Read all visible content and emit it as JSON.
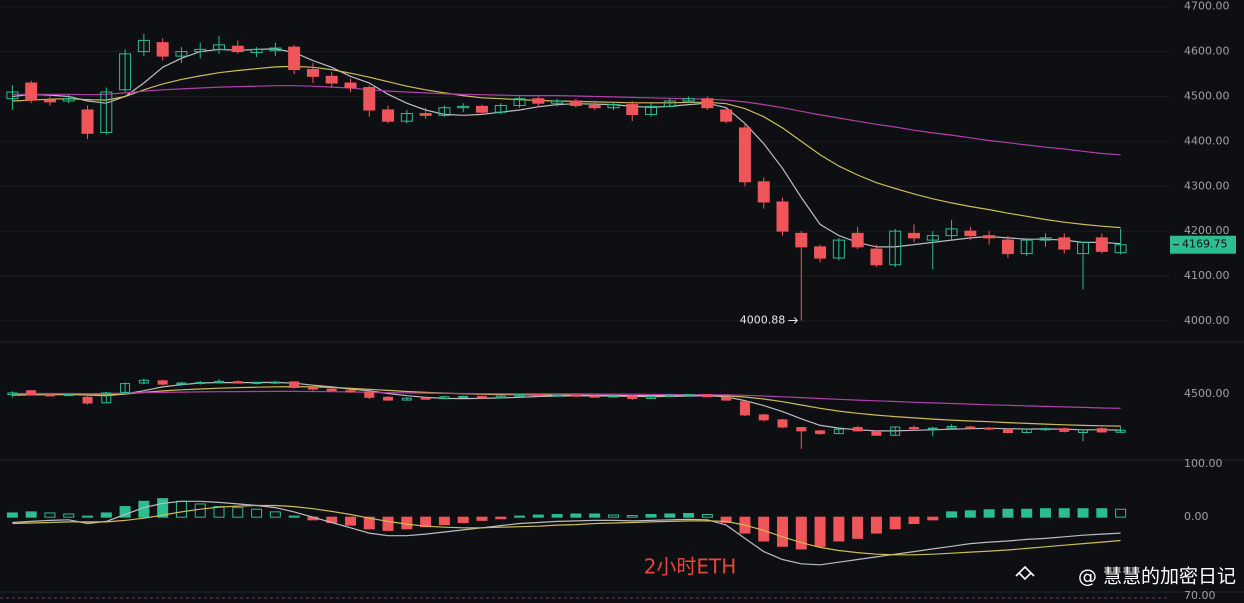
{
  "chart_data": {
    "type": "candlestick",
    "open": [
      4495,
      4530,
      4492,
      4490,
      4470,
      4420,
      4515,
      4600,
      4620,
      4590,
      4600,
      4605,
      4612,
      4598,
      4602,
      4610,
      4560,
      4545,
      4530,
      4520,
      4470,
      4445,
      4462,
      4458,
      4475,
      4478,
      4465,
      4480,
      4495,
      4485,
      4490,
      4480,
      4475,
      4482,
      4460,
      4478,
      4490,
      4495,
      4470,
      4430,
      4310,
      4265,
      4195,
      4165,
      4140,
      4195,
      4160,
      4125,
      4195,
      4180,
      4190,
      4200,
      4190,
      4180,
      4150,
      4180,
      4185,
      4150,
      4185,
      4152
    ],
    "high": [
      4525,
      4535,
      4500,
      4505,
      4480,
      4520,
      4605,
      4640,
      4630,
      4610,
      4620,
      4635,
      4625,
      4610,
      4620,
      4615,
      4575,
      4555,
      4540,
      4525,
      4480,
      4470,
      4475,
      4480,
      4485,
      4482,
      4485,
      4500,
      4500,
      4495,
      4495,
      4490,
      4488,
      4490,
      4485,
      4495,
      4500,
      4500,
      4475,
      4440,
      4320,
      4275,
      4200,
      4170,
      4185,
      4210,
      4170,
      4205,
      4215,
      4200,
      4225,
      4210,
      4200,
      4190,
      4185,
      4195,
      4195,
      4175,
      4195,
      4205
    ],
    "low": [
      4470,
      4485,
      4480,
      4485,
      4405,
      4415,
      4510,
      4590,
      4580,
      4575,
      4585,
      4595,
      4595,
      4588,
      4590,
      4550,
      4530,
      4520,
      4510,
      4455,
      4440,
      4440,
      4450,
      4455,
      4465,
      4460,
      4460,
      4475,
      4478,
      4478,
      4475,
      4470,
      4470,
      4445,
      4455,
      4475,
      4485,
      4470,
      4440,
      4300,
      4250,
      4190,
      4000.88,
      4130,
      4135,
      4160,
      4120,
      4120,
      4175,
      4115,
      4180,
      4180,
      4170,
      4140,
      4145,
      4165,
      4150,
      4070,
      4150,
      4148
    ],
    "close": [
      4510,
      4492,
      4488,
      4495,
      4418,
      4510,
      4595,
      4625,
      4590,
      4600,
      4605,
      4615,
      4600,
      4605,
      4608,
      4560,
      4545,
      4530,
      4520,
      4470,
      4445,
      4462,
      4458,
      4475,
      4478,
      4465,
      4480,
      4495,
      4485,
      4490,
      4480,
      4475,
      4482,
      4460,
      4478,
      4490,
      4495,
      4475,
      4445,
      4310,
      4265,
      4200,
      4165,
      4140,
      4180,
      4165,
      4125,
      4200,
      4185,
      4190,
      4205,
      4190,
      4185,
      4150,
      4180,
      4185,
      4160,
      4175,
      4155,
      4169.75
    ],
    "up_color": "#2dbd8f",
    "down_color": "#f0555a",
    "ylim": [
      3953,
      4715
    ],
    "yticks": [
      {
        "value": 4000,
        "label": "4000.00"
      },
      {
        "value": 4100,
        "label": "4100.00"
      },
      {
        "value": 4200,
        "label": "4200.00"
      },
      {
        "value": 4300,
        "label": "4300.00"
      },
      {
        "value": 4400,
        "label": "4400.00"
      },
      {
        "value": 4500,
        "label": "4500.00"
      },
      {
        "value": 4600,
        "label": "4600.00"
      },
      {
        "value": 4700,
        "label": "4700.00"
      }
    ],
    "moving_averages": [
      {
        "color": "#b9bcc2",
        "values": [
          4500,
          4505,
          4503,
          4500,
          4490,
          4485,
          4500,
          4530,
          4565,
          4585,
          4600,
          4605,
          4603,
          4605,
          4606,
          4598,
          4580,
          4565,
          4545,
          4530,
          4505,
          4485,
          4470,
          4460,
          4458,
          4460,
          4465,
          4470,
          4477,
          4482,
          4484,
          4483,
          4482,
          4478,
          4476,
          4478,
          4482,
          4485,
          4475,
          4440,
          4395,
          4340,
          4275,
          4215,
          4190,
          4175,
          4165,
          4165,
          4170,
          4175,
          4180,
          4185,
          4188,
          4185,
          4182,
          4182,
          4180,
          4175,
          4175,
          4172
        ]
      },
      {
        "color": "#cdbb55",
        "values": [
          4490,
          4492,
          4494,
          4495,
          4493,
          4492,
          4500,
          4515,
          4528,
          4538,
          4546,
          4553,
          4558,
          4562,
          4566,
          4567,
          4565,
          4560,
          4552,
          4543,
          4533,
          4523,
          4515,
          4508,
          4502,
          4497,
          4495,
          4493,
          4491,
          4490,
          4489,
          4488,
          4487,
          4486,
          4486,
          4486,
          4487,
          4487,
          4484,
          4473,
          4455,
          4430,
          4400,
          4370,
          4345,
          4325,
          4308,
          4295,
          4283,
          4272,
          4263,
          4255,
          4248,
          4240,
          4233,
          4226,
          4220,
          4215,
          4211,
          4208
        ]
      },
      {
        "color": "#b03fa6",
        "values": [
          4505,
          4505,
          4505,
          4505,
          4504,
          4505,
          4508,
          4512,
          4515,
          4517,
          4519,
          4521,
          4522,
          4523,
          4524,
          4524,
          4523,
          4521,
          4519,
          4515,
          4512,
          4510,
          4508,
          4506,
          4505,
          4504,
          4503,
          4502,
          4502,
          4502,
          4501,
          4500,
          4499,
          4498,
          4497,
          4496,
          4495,
          4494,
          4492,
          4488,
          4482,
          4475,
          4467,
          4459,
          4452,
          4445,
          4438,
          4432,
          4425,
          4419,
          4414,
          4408,
          4402,
          4397,
          4392,
          4387,
          4383,
          4378,
          4373,
          4370
        ]
      }
    ],
    "sub_panels": [
      {
        "type": "candlestick",
        "ylim": [
          3900,
          4973
        ],
        "yticks": [
          {
            "value": 4500,
            "label": "4500.00"
          }
        ]
      },
      {
        "type": "macd",
        "ylim": [
          -147,
          108
        ],
        "yticks": [
          {
            "value": 100,
            "label": "100.00"
          },
          {
            "value": 0,
            "label": "0.00"
          }
        ],
        "histogram": [
          8,
          10,
          8,
          6,
          2,
          8,
          20,
          30,
          35,
          30,
          25,
          20,
          18,
          15,
          10,
          2,
          -5,
          -10,
          -15,
          -22,
          -25,
          -22,
          -18,
          -14,
          -10,
          -6,
          -3,
          2,
          4,
          5,
          6,
          6,
          4,
          3,
          5,
          6,
          7,
          5,
          -10,
          -30,
          -45,
          -55,
          -60,
          -55,
          -45,
          -40,
          -30,
          -22,
          -12,
          -5,
          10,
          12,
          14,
          15,
          15,
          16,
          16,
          16,
          16,
          15
        ],
        "lines": [
          {
            "color": "#b9bcc2",
            "values": [
              -10,
              -8,
              -6,
              -5,
              -12,
              -8,
              5,
              18,
              26,
              30,
              30,
              28,
              25,
              22,
              18,
              10,
              0,
              -10,
              -20,
              -30,
              -35,
              -35,
              -32,
              -28,
              -24,
              -20,
              -16,
              -12,
              -10,
              -8,
              -7,
              -6,
              -6,
              -7,
              -6,
              -5,
              -4,
              -5,
              -15,
              -40,
              -65,
              -80,
              -88,
              -90,
              -85,
              -80,
              -75,
              -70,
              -65,
              -60,
              -55,
              -50,
              -47,
              -45,
              -42,
              -40,
              -37,
              -34,
              -32,
              -30
            ]
          },
          {
            "color": "#cdbb55",
            "values": [
              -12,
              -11,
              -10,
              -9,
              -9,
              -9,
              -6,
              -2,
              4,
              10,
              15,
              19,
              21,
              22,
              22,
              20,
              16,
              11,
              5,
              -2,
              -8,
              -13,
              -17,
              -19,
              -20,
              -20,
              -19,
              -18,
              -17,
              -15,
              -14,
              -12,
              -11,
              -10,
              -9,
              -8,
              -7,
              -7,
              -8,
              -15,
              -25,
              -37,
              -48,
              -57,
              -63,
              -67,
              -70,
              -71,
              -71,
              -70,
              -68,
              -66,
              -64,
              -62,
              -59,
              -56,
              -53,
              -50,
              -47,
              -44
            ]
          }
        ]
      },
      {
        "type": "rsi",
        "ylim": [
          0,
          100
        ],
        "yticks": [
          {
            "value": 70,
            "label": "70.00"
          }
        ]
      }
    ],
    "caption": "2小时ETH"
  },
  "watermark": "@ 慧慧的加密日记"
}
